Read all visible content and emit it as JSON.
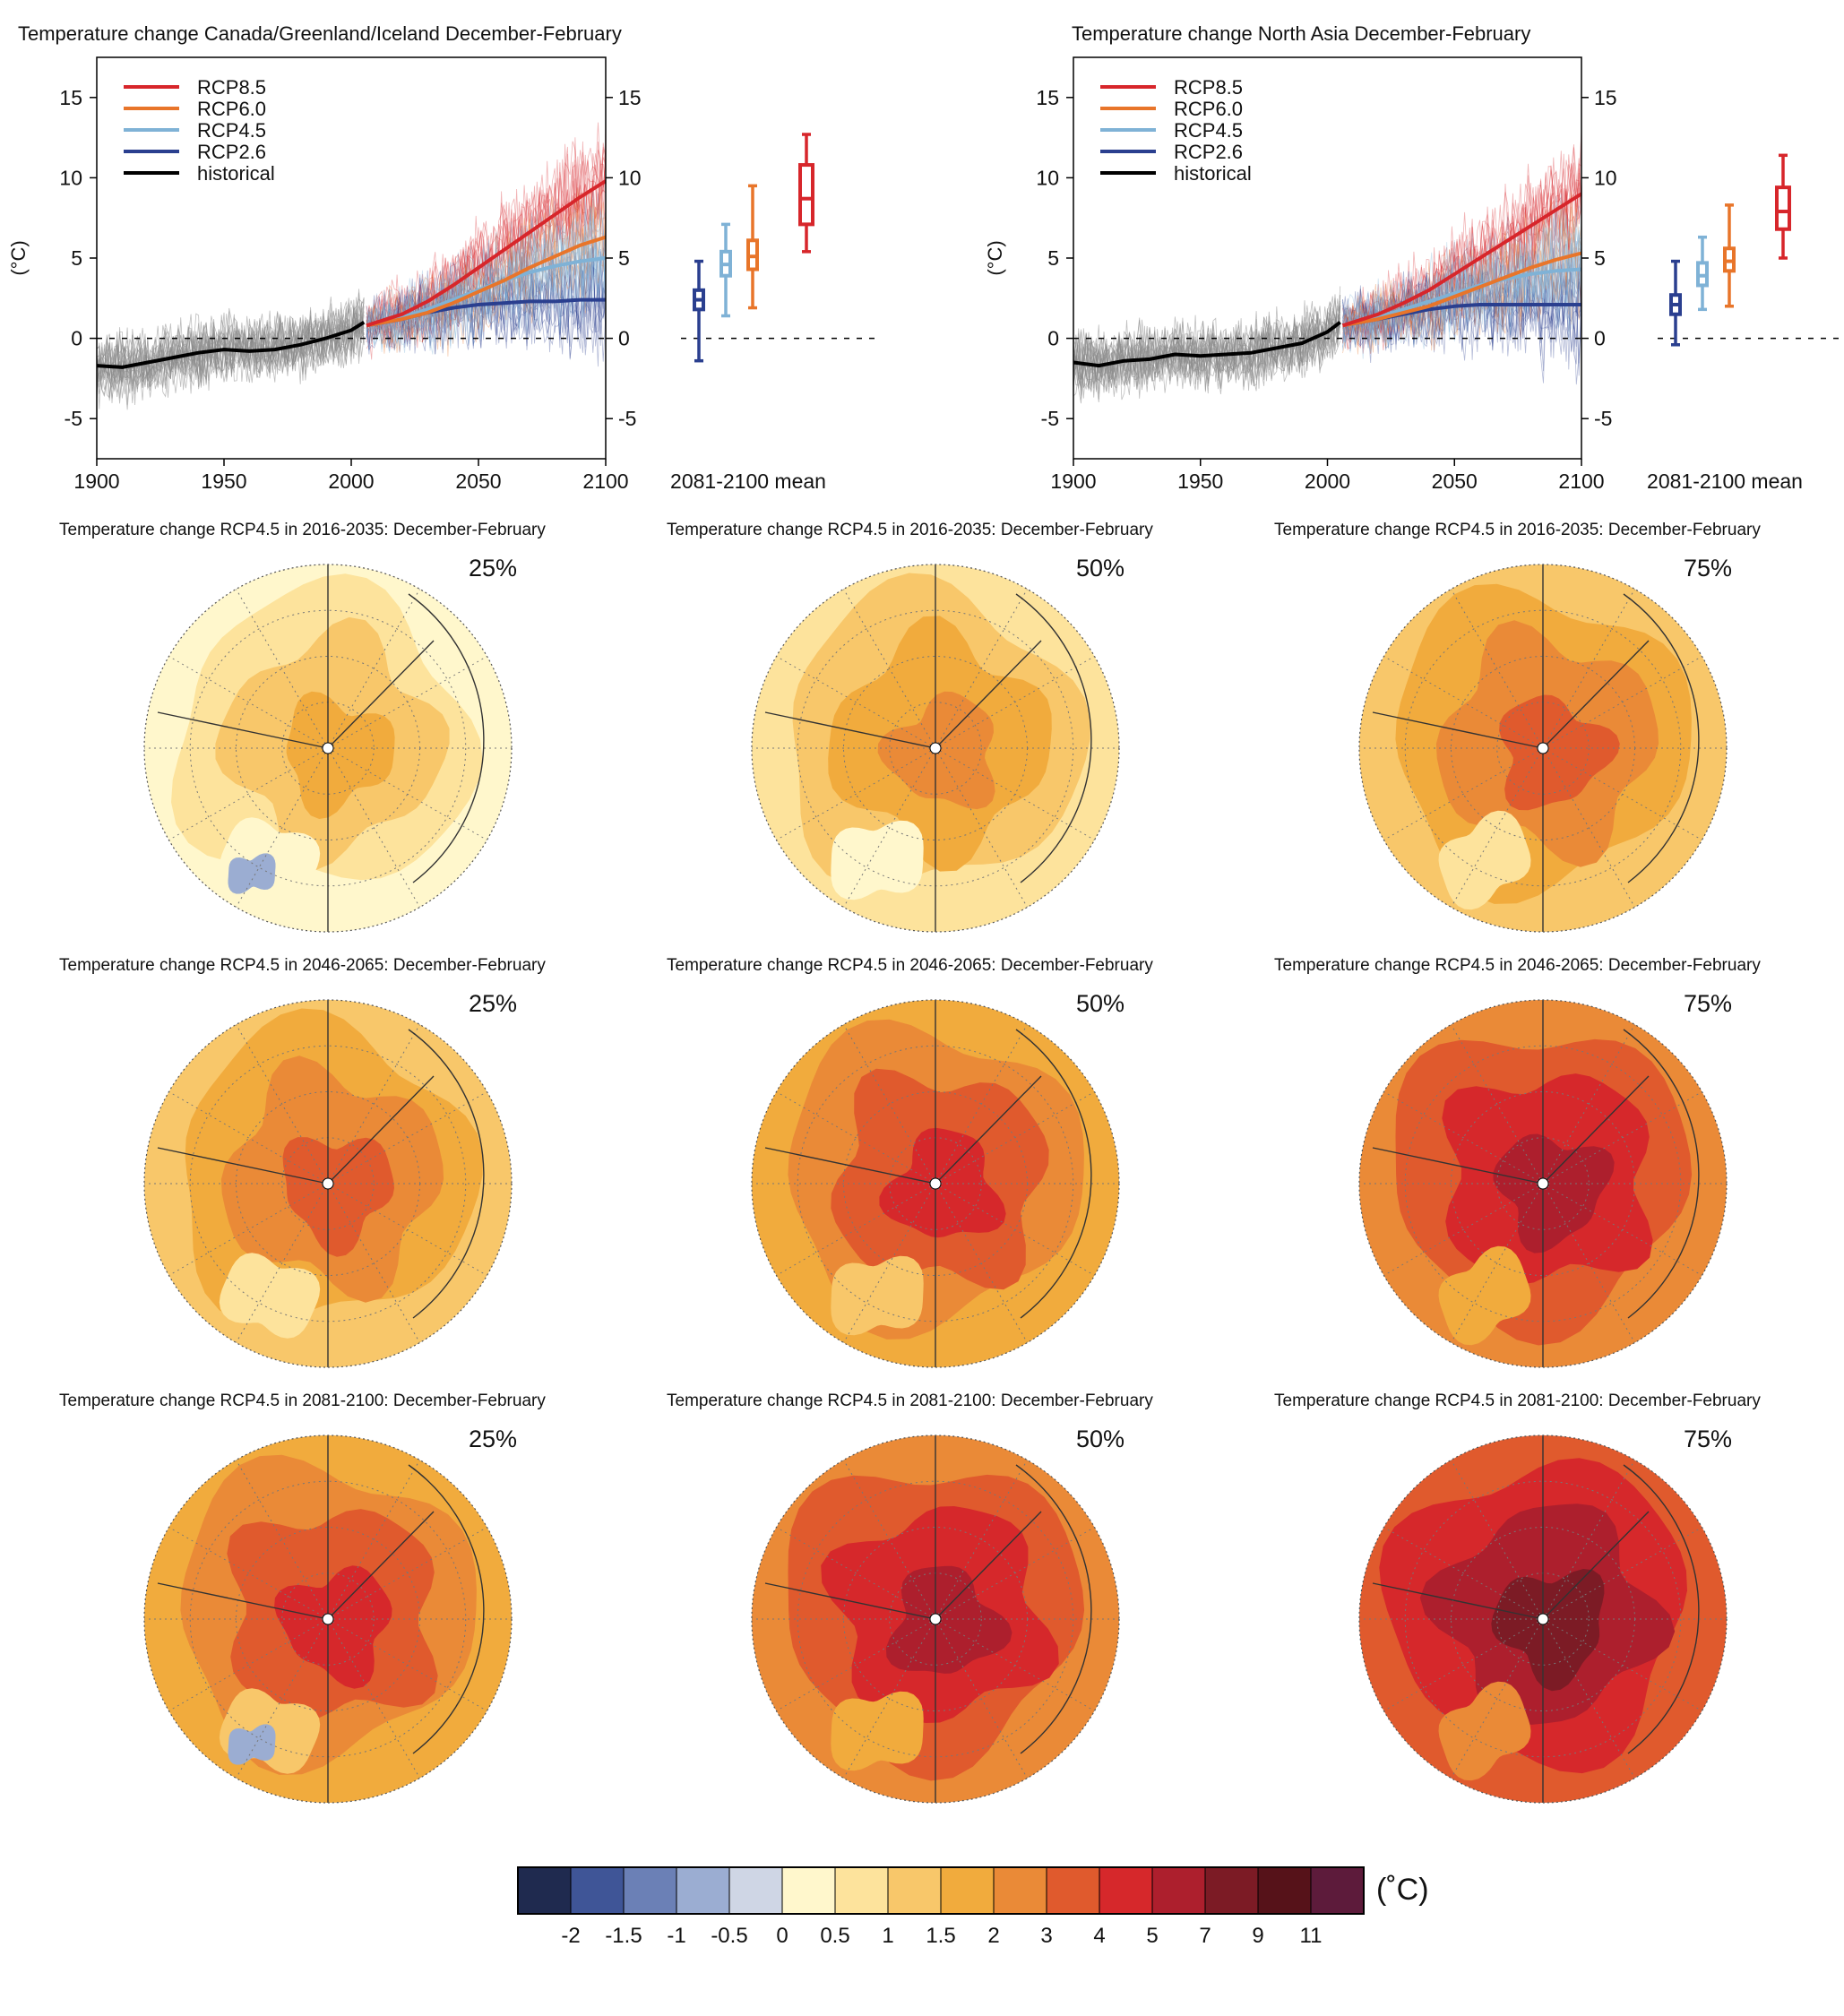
{
  "colors": {
    "rcp85": "#d7262b",
    "rcp60": "#e8752a",
    "rcp45": "#7fb2d6",
    "rcp26": "#2a3f8f",
    "historical": "#000000",
    "historical_ensemble": "#8a8a8a",
    "map_border": "#555555"
  },
  "timeseries_panels": [
    {
      "title": "Temperature change Canada/Greenland/Iceland December-February",
      "ylabel": "(°C)",
      "boxplot_label": "2081-2100 mean",
      "legend": [
        "RCP8.5",
        "RCP6.0",
        "RCP4.5",
        "RCP2.6",
        "historical"
      ],
      "xlim": [
        1900,
        2100
      ],
      "ylim": [
        -7.5,
        17.5
      ],
      "xticks": [
        1900,
        1950,
        2000,
        2050,
        2100
      ],
      "yticks": [
        -5,
        0,
        5,
        10,
        15
      ],
      "series_keys": [
        "historical",
        "rcp26",
        "rcp45",
        "rcp60",
        "rcp85"
      ]
    },
    {
      "title": "Temperature change North Asia December-February",
      "ylabel": "(°C)",
      "boxplot_label": "2081-2100 mean",
      "legend": [
        "RCP8.5",
        "RCP6.0",
        "RCP4.5",
        "RCP2.6",
        "historical"
      ],
      "xlim": [
        1900,
        2100
      ],
      "ylim": [
        -7.5,
        17.5
      ],
      "xticks": [
        1900,
        1950,
        2000,
        2050,
        2100
      ],
      "yticks": [
        -5,
        0,
        5,
        10,
        15
      ],
      "series_keys": [
        "historical",
        "rcp26",
        "rcp45",
        "rcp60",
        "rcp85"
      ]
    }
  ],
  "map_rows": [
    {
      "title": "Temperature change RCP4.5 in 2016-2035: December-February",
      "percentiles": [
        "25%",
        "50%",
        "75%"
      ]
    },
    {
      "title": "Temperature change RCP4.5 in 2046-2065: December-February",
      "percentiles": [
        "25%",
        "50%",
        "75%"
      ]
    },
    {
      "title": "Temperature change RCP4.5 in 2081-2100: December-February",
      "percentiles": [
        "25%",
        "50%",
        "75%"
      ]
    }
  ],
  "colorbar": {
    "unit": "(˚C)",
    "labels": [
      "-2",
      "-1.5",
      "-1",
      "-0.5",
      "0",
      "0.5",
      "1",
      "1.5",
      "2",
      "3",
      "4",
      "5",
      "7",
      "9",
      "11"
    ],
    "colors": [
      "#1f2a4f",
      "#3f5597",
      "#6b80b6",
      "#9badd2",
      "#cfd6e5",
      "#fff7cc",
      "#fde39c",
      "#f8c76a",
      "#f1ab3d",
      "#ea8a37",
      "#e05a2d",
      "#d6282b",
      "#ad1f2d",
      "#7c1b25",
      "#561219",
      "#5d1b3b"
    ]
  },
  "chart_data": [
    {
      "type": "line",
      "title": "Temperature change Canada/Greenland/Iceland December-February",
      "ylabel": "(°C)",
      "xlim": [
        1900,
        2100
      ],
      "ylim": [
        -7.5,
        17.5
      ],
      "series": [
        {
          "name": "historical",
          "x": [
            1900,
            1910,
            1920,
            1930,
            1940,
            1950,
            1960,
            1970,
            1980,
            1990,
            2000,
            2005
          ],
          "values": [
            -1.7,
            -1.8,
            -1.5,
            -1.2,
            -0.9,
            -0.7,
            -0.8,
            -0.7,
            -0.4,
            0.0,
            0.5,
            1.0
          ]
        },
        {
          "name": "RCP2.6",
          "x": [
            2006,
            2020,
            2030,
            2040,
            2050,
            2060,
            2070,
            2080,
            2090,
            2100
          ],
          "values": [
            0.8,
            1.2,
            1.6,
            1.9,
            2.1,
            2.2,
            2.3,
            2.3,
            2.4,
            2.4
          ]
        },
        {
          "name": "RCP4.5",
          "x": [
            2006,
            2020,
            2030,
            2040,
            2050,
            2060,
            2070,
            2080,
            2090,
            2100
          ],
          "values": [
            0.8,
            1.3,
            1.8,
            2.4,
            3.0,
            3.6,
            4.1,
            4.5,
            4.8,
            5.0
          ]
        },
        {
          "name": "RCP6.0",
          "x": [
            2006,
            2020,
            2030,
            2040,
            2050,
            2060,
            2070,
            2080,
            2090,
            2100
          ],
          "values": [
            0.8,
            1.2,
            1.6,
            2.2,
            2.9,
            3.6,
            4.4,
            5.1,
            5.8,
            6.3
          ]
        },
        {
          "name": "RCP8.5",
          "x": [
            2006,
            2020,
            2030,
            2040,
            2050,
            2060,
            2070,
            2080,
            2090,
            2100
          ],
          "values": [
            0.8,
            1.5,
            2.3,
            3.3,
            4.4,
            5.5,
            6.6,
            7.7,
            8.8,
            9.8
          ]
        }
      ],
      "boxplots": [
        {
          "name": "RCP2.6",
          "min": -1.4,
          "q1": 1.8,
          "median": 2.4,
          "q3": 3.0,
          "max": 4.8
        },
        {
          "name": "RCP4.5",
          "min": 1.4,
          "q1": 3.9,
          "median": 4.6,
          "q3": 5.4,
          "max": 7.1
        },
        {
          "name": "RCP6.0",
          "min": 1.9,
          "q1": 4.3,
          "median": 5.1,
          "q3": 6.1,
          "max": 9.5
        },
        {
          "name": "RCP8.5",
          "min": 5.4,
          "q1": 7.1,
          "median": 8.7,
          "q3": 10.8,
          "max": 12.7
        }
      ]
    },
    {
      "type": "line",
      "title": "Temperature change North Asia December-February",
      "ylabel": "(°C)",
      "xlim": [
        1900,
        2100
      ],
      "ylim": [
        -7.5,
        17.5
      ],
      "series": [
        {
          "name": "historical",
          "x": [
            1900,
            1910,
            1920,
            1930,
            1940,
            1950,
            1960,
            1970,
            1980,
            1990,
            2000,
            2005
          ],
          "values": [
            -1.5,
            -1.7,
            -1.4,
            -1.3,
            -1.0,
            -1.1,
            -1.0,
            -0.9,
            -0.6,
            -0.3,
            0.4,
            1.0
          ]
        },
        {
          "name": "RCP2.6",
          "x": [
            2006,
            2020,
            2030,
            2040,
            2050,
            2060,
            2070,
            2080,
            2090,
            2100
          ],
          "values": [
            0.8,
            1.2,
            1.5,
            1.8,
            2.0,
            2.1,
            2.1,
            2.1,
            2.1,
            2.1
          ]
        },
        {
          "name": "RCP4.5",
          "x": [
            2006,
            2020,
            2030,
            2040,
            2050,
            2060,
            2070,
            2080,
            2090,
            2100
          ],
          "values": [
            0.8,
            1.3,
            1.8,
            2.3,
            2.8,
            3.3,
            3.7,
            4.0,
            4.2,
            4.3
          ]
        },
        {
          "name": "RCP6.0",
          "x": [
            2006,
            2020,
            2030,
            2040,
            2050,
            2060,
            2070,
            2080,
            2090,
            2100
          ],
          "values": [
            0.8,
            1.2,
            1.6,
            2.0,
            2.6,
            3.2,
            3.8,
            4.4,
            4.9,
            5.3
          ]
        },
        {
          "name": "RCP8.5",
          "x": [
            2006,
            2020,
            2030,
            2040,
            2050,
            2060,
            2070,
            2080,
            2090,
            2100
          ],
          "values": [
            0.8,
            1.5,
            2.2,
            3.0,
            4.0,
            5.0,
            6.0,
            7.0,
            8.0,
            9.0
          ]
        }
      ],
      "boxplots": [
        {
          "name": "RCP2.6",
          "min": -0.4,
          "q1": 1.5,
          "median": 2.1,
          "q3": 2.7,
          "max": 4.8
        },
        {
          "name": "RCP4.5",
          "min": 1.8,
          "q1": 3.3,
          "median": 3.9,
          "q3": 4.7,
          "max": 6.3
        },
        {
          "name": "RCP6.0",
          "min": 2.0,
          "q1": 4.2,
          "median": 4.8,
          "q3": 5.6,
          "max": 8.3
        },
        {
          "name": "RCP8.5",
          "min": 5.0,
          "q1": 6.8,
          "median": 7.9,
          "q3": 9.4,
          "max": 11.4
        }
      ]
    }
  ]
}
